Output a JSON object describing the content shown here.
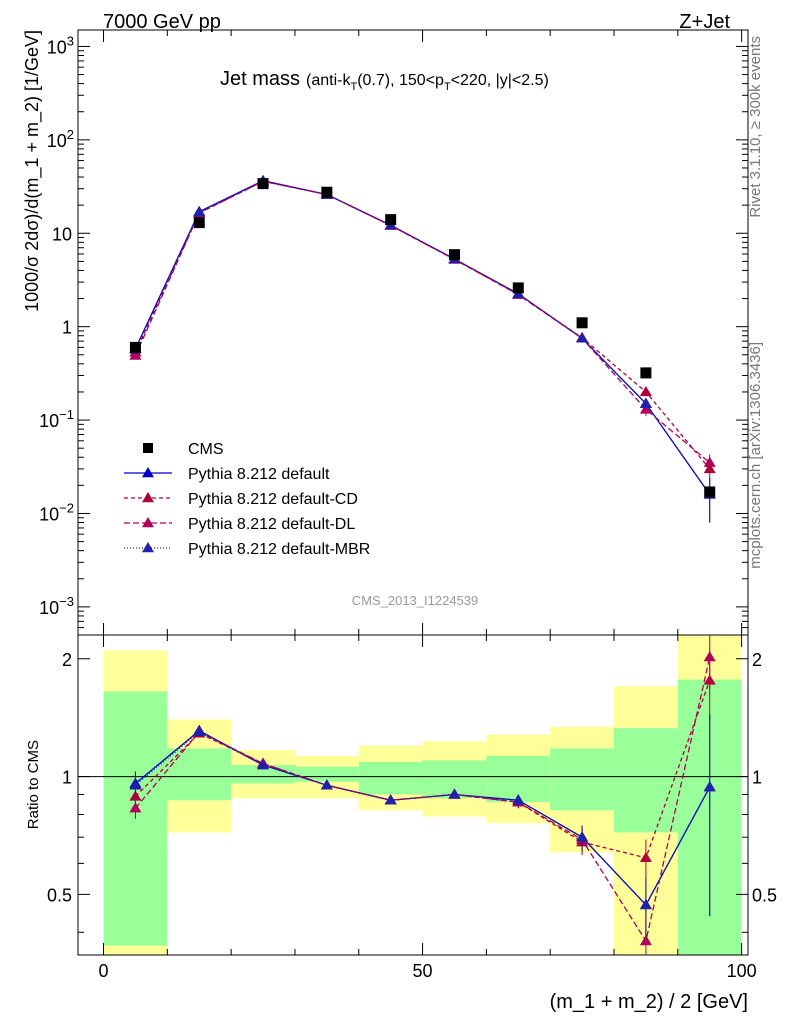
{
  "header": {
    "left": "7000 GeV pp",
    "right": "Z+Jet"
  },
  "side_labels": {
    "rivet": "Rivet 3.1.10, ≥ 300k events",
    "mcplots": "mcplots.cern.ch [arXiv:1306.3436]"
  },
  "chart_data": {
    "type": "scatter",
    "title": "Jet mass",
    "subtitle_parts": [
      "(anti-k",
      "T",
      "(0.7), 150<p",
      "T",
      "<220, |y|<2.5)"
    ],
    "analysis_id": "CMS_2013_I1224539",
    "xlabel": "(m_1 + m_2) / 2 [GeV]",
    "ylabel": "1000/σ 2dσ)/d(m_1 + m_2) [1/GeV]",
    "ratio_ylabel": "Ratio to CMS",
    "xlim": [
      -4,
      101
    ],
    "ylim": [
      0.0005,
      1500
    ],
    "ratio_ylim": [
      0.35,
      2.3
    ],
    "log_y": true,
    "x_ticks": [
      0,
      50,
      100
    ],
    "x_tick_labels": [
      "0",
      "50",
      "100"
    ],
    "y_ticks": [
      0.001,
      0.01,
      0.1,
      1,
      10,
      100,
      1000
    ],
    "y_tick_labels": [
      {
        "base": "10",
        "exp": "−3"
      },
      {
        "base": "10",
        "exp": "−2"
      },
      {
        "base": "10",
        "exp": "−1"
      },
      {
        "base": "1",
        "exp": ""
      },
      {
        "base": "10",
        "exp": ""
      },
      {
        "base": "10",
        "exp": "2"
      },
      {
        "base": "10",
        "exp": "3"
      }
    ],
    "ratio_ticks": [
      0.5,
      1,
      2
    ],
    "ratio_tick_labels": [
      "0.5",
      "1",
      "2"
    ],
    "bins": [
      [
        0,
        10
      ],
      [
        10,
        20
      ],
      [
        20,
        30
      ],
      [
        30,
        40
      ],
      [
        40,
        50
      ],
      [
        50,
        60
      ],
      [
        60,
        70
      ],
      [
        70,
        80
      ],
      [
        80,
        90
      ],
      [
        90,
        100
      ]
    ],
    "x": [
      5,
      15,
      25,
      35,
      45,
      55,
      65,
      75,
      85,
      95
    ],
    "data": {
      "name": "CMS",
      "values": [
        0.6,
        13,
        34,
        27.5,
        14,
        5.9,
        2.6,
        1.1,
        0.32,
        0.017
      ],
      "band_inner": [
        [
          0.37,
          1.65
        ],
        [
          0.87,
          1.18
        ],
        [
          0.96,
          1.07
        ],
        [
          0.97,
          1.06
        ],
        [
          0.9,
          1.09
        ],
        [
          0.88,
          1.1
        ],
        [
          0.86,
          1.13
        ],
        [
          0.82,
          1.18
        ],
        [
          0.72,
          1.33
        ],
        [
          0.35,
          1.77
        ]
      ],
      "band_outer": [
        [
          0.35,
          2.1
        ],
        [
          0.72,
          1.4
        ],
        [
          0.88,
          1.17
        ],
        [
          0.88,
          1.13
        ],
        [
          0.82,
          1.2
        ],
        [
          0.79,
          1.23
        ],
        [
          0.76,
          1.28
        ],
        [
          0.64,
          1.34
        ],
        [
          0.35,
          1.7
        ],
        [
          0.35,
          2.3
        ]
      ]
    },
    "series": [
      {
        "name": "Pythia 8.212 default",
        "color": "#0000cc",
        "dash": "",
        "values": [
          0.58,
          17,
          36.5,
          26,
          12.2,
          5.3,
          2.25,
          0.75,
          0.15,
          0.016
        ],
        "errors": [
          0.04,
          0.3,
          0.4,
          0.3,
          0.15,
          0.08,
          0.05,
          0.03,
          0.02,
          0.008
        ],
        "ratio": [
          0.96,
          1.31,
          1.07,
          0.95,
          0.87,
          0.9,
          0.87,
          0.7,
          0.47,
          0.94
        ],
        "ratio_err": [
          0.07,
          0.02,
          0.01,
          0.01,
          0.01,
          0.02,
          0.03,
          0.05,
          0.08,
          0.5
        ]
      },
      {
        "name": "Pythia 8.212 default-CD",
        "color": "#b0003a",
        "dash": "4,3",
        "values": [
          0.53,
          16.5,
          36,
          26,
          12.1,
          5.25,
          2.22,
          0.76,
          0.2,
          0.03
        ],
        "errors": [
          0.04,
          0.3,
          0.4,
          0.3,
          0.15,
          0.08,
          0.05,
          0.03,
          0.02,
          0.008
        ],
        "ratio": [
          0.89,
          1.29,
          1.08,
          0.95,
          0.87,
          0.9,
          0.86,
          0.68,
          0.62,
          1.76
        ],
        "ratio_err": [
          0.06,
          0.02,
          0.01,
          0.01,
          0.01,
          0.02,
          0.03,
          0.05,
          0.07,
          0.35
        ]
      },
      {
        "name": "Pythia 8.212 default-DL",
        "color": "#b0005a",
        "dash": "6,3",
        "values": [
          0.49,
          16.5,
          36,
          26,
          12.1,
          5.25,
          2.2,
          0.75,
          0.13,
          0.035
        ],
        "errors": [
          0.04,
          0.3,
          0.4,
          0.3,
          0.15,
          0.08,
          0.05,
          0.03,
          0.02,
          0.008
        ],
        "ratio": [
          0.83,
          1.3,
          1.08,
          0.95,
          0.87,
          0.9,
          0.86,
          0.69,
          0.38,
          2.02
        ],
        "ratio_err": [
          0.05,
          0.02,
          0.01,
          0.01,
          0.01,
          0.02,
          0.03,
          0.05,
          0.06,
          0.35
        ]
      },
      {
        "name": "Pythia 8.212 default-MBR",
        "color": "#2020aa",
        "dash": "1,2",
        "values": [
          0.57,
          16.8,
          36.3,
          26,
          12.2,
          5.3,
          2.24,
          0.75,
          0.15,
          0.016
        ],
        "errors": [
          0.04,
          0.3,
          0.4,
          0.3,
          0.15,
          0.08,
          0.05,
          0.03,
          0.02,
          0.008
        ],
        "ratio": [
          0.95,
          1.3,
          1.07,
          0.95,
          0.87,
          0.9,
          0.87,
          0.7,
          0.47,
          0.94
        ],
        "ratio_err": [
          0.07,
          0.02,
          0.01,
          0.01,
          0.01,
          0.02,
          0.03,
          0.05,
          0.08,
          0.5
        ]
      }
    ],
    "legend_placement": "lower-left",
    "colors": {
      "band_inner": "#99ff99",
      "band_outer": "#ffff99",
      "data_marker": "#000000"
    }
  }
}
